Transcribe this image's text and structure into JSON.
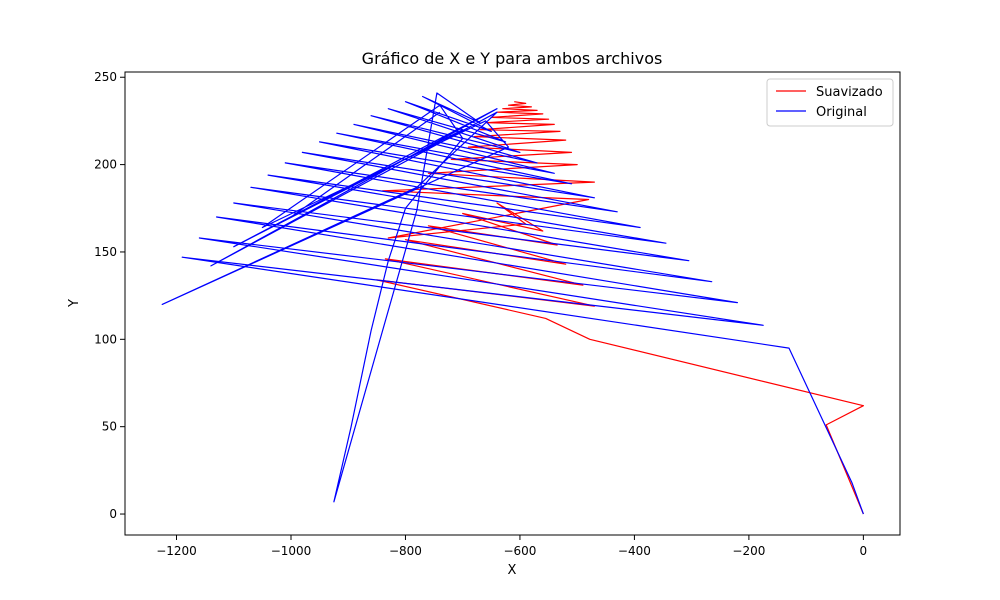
{
  "chart_data": {
    "type": "line",
    "title": "Gráfico de X e Y para ambos archivos",
    "xlabel": "X",
    "ylabel": "Y",
    "xlim": [
      -1290,
      64
    ],
    "ylim": [
      -12,
      253
    ],
    "xticks": [
      -1200,
      -1000,
      -800,
      -600,
      -400,
      -200,
      0
    ],
    "yticks": [
      0,
      50,
      100,
      150,
      200,
      250
    ],
    "grid": false,
    "legend_position": "top-right",
    "series": [
      {
        "name": "Suavizado",
        "color": "#ff0000",
        "x": [
          0,
          -65,
          0,
          -478,
          -555,
          -850,
          -470,
          -835,
          -490,
          -800,
          -520,
          -760,
          -535,
          -700,
          -560,
          -640,
          -590,
          -830,
          -480,
          -840,
          -470,
          -760,
          -500,
          -720,
          -510,
          -690,
          -520,
          -680,
          -530,
          -670,
          -540,
          -660,
          -550,
          -650,
          -560,
          -640,
          -570,
          -630,
          -580,
          -620,
          -590,
          -610
        ],
        "y": [
          0,
          51,
          62,
          100,
          112,
          134,
          119,
          146,
          131,
          157,
          143,
          165,
          154,
          172,
          162,
          178,
          166,
          158,
          180,
          185,
          190,
          195,
          200,
          203,
          207,
          210,
          214,
          216,
          219,
          220,
          223,
          224,
          226,
          227,
          229,
          230,
          231,
          232,
          233,
          234,
          235,
          236
        ]
      },
      {
        "name": "Original",
        "color": "#0000ff",
        "x": [
          0,
          -20,
          -110,
          -130,
          -1190,
          -175,
          -1160,
          -220,
          -1130,
          -265,
          -1100,
          -305,
          -1070,
          -345,
          -1040,
          -390,
          -1010,
          -430,
          -980,
          -470,
          -950,
          -510,
          -920,
          -540,
          -890,
          -570,
          -860,
          -600,
          -830,
          -625,
          -800,
          -650,
          -770,
          -670,
          -745,
          -780,
          -925,
          -895,
          -860,
          -830,
          -800,
          -700,
          -740,
          -1050,
          -660,
          -620,
          -1225,
          -780,
          -640,
          -1140,
          -640,
          -1100,
          -700,
          -1000,
          -740
        ],
        "y": [
          0,
          18,
          81,
          95,
          147,
          108,
          158,
          121,
          170,
          133,
          178,
          145,
          187,
          155,
          194,
          164,
          201,
          173,
          207,
          181,
          213,
          189,
          218,
          195,
          223,
          201,
          228,
          207,
          232,
          213,
          236,
          219,
          239,
          224,
          241,
          174,
          7,
          50,
          105,
          145,
          175,
          215,
          234,
          164,
          225,
          210,
          120,
          187,
          230,
          142,
          232,
          153,
          220,
          170,
          230
        ]
      }
    ]
  }
}
